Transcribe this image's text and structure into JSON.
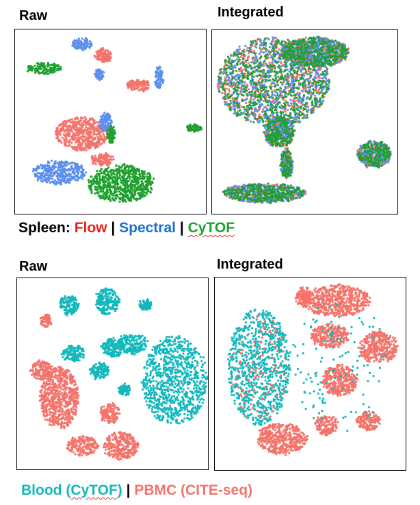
{
  "colors": {
    "flow": "#f4736a",
    "spectral": "#5b8ff0",
    "cytof_spleen": "#1fa12e",
    "blood": "#12b8bc",
    "pbmc": "#f4736a",
    "caption_flow": "#e8201b",
    "caption_spectral": "#1a6fd1",
    "caption_cytof": "#1fa12e",
    "caption_blood": "#12b8bc",
    "caption_pbmc": "#f4736a"
  },
  "titles": {
    "top_raw": "Raw",
    "top_integrated": "Integrated",
    "bottom_raw": "Raw",
    "bottom_integrated": "Integrated"
  },
  "captions": {
    "spleen_prefix": "Spleen:",
    "flow": "Flow",
    "spectral": "Spectral",
    "cytof": "CyTOF",
    "sep": "|",
    "blood_pre": "Blood (",
    "blood_cytof": "CyTOF",
    "blood_post": ")",
    "pbmc": "PBMC (CITE-seq)"
  },
  "chart_data": [
    {
      "type": "scatter",
      "title": "Raw",
      "legend": [
        "Flow",
        "Spectral",
        "CyTOF"
      ],
      "series": [
        {
          "name": "Flow",
          "color": "#f4736a",
          "clusters": [
            {
              "cx": 0.35,
              "cy": 0.56,
              "rx": 0.14,
              "ry": 0.09
            },
            {
              "cx": 0.46,
              "cy": 0.14,
              "rx": 0.04,
              "ry": 0.04
            },
            {
              "cx": 0.64,
              "cy": 0.3,
              "rx": 0.06,
              "ry": 0.03
            },
            {
              "cx": 0.45,
              "cy": 0.7,
              "rx": 0.06,
              "ry": 0.03
            }
          ]
        },
        {
          "name": "Spectral",
          "color": "#5b8ff0",
          "clusters": [
            {
              "cx": 0.23,
              "cy": 0.77,
              "rx": 0.14,
              "ry": 0.06
            },
            {
              "cx": 0.35,
              "cy": 0.08,
              "rx": 0.05,
              "ry": 0.03
            },
            {
              "cx": 0.44,
              "cy": 0.24,
              "rx": 0.02,
              "ry": 0.03
            },
            {
              "cx": 0.75,
              "cy": 0.26,
              "rx": 0.02,
              "ry": 0.06
            },
            {
              "cx": 0.47,
              "cy": 0.5,
              "rx": 0.03,
              "ry": 0.05
            }
          ]
        },
        {
          "name": "CyTOF",
          "color": "#1fa12e",
          "clusters": [
            {
              "cx": 0.55,
              "cy": 0.83,
              "rx": 0.17,
              "ry": 0.1
            },
            {
              "cx": 0.15,
              "cy": 0.21,
              "rx": 0.09,
              "ry": 0.03
            },
            {
              "cx": 0.93,
              "cy": 0.53,
              "rx": 0.04,
              "ry": 0.02
            },
            {
              "cx": 0.5,
              "cy": 0.57,
              "rx": 0.02,
              "ry": 0.05
            }
          ]
        }
      ]
    },
    {
      "type": "scatter",
      "title": "Integrated",
      "legend": [
        "Flow",
        "Spectral",
        "CyTOF"
      ],
      "series": [
        {
          "name": "Flow",
          "color": "#f4736a",
          "mixed": true
        },
        {
          "name": "Spectral",
          "color": "#5b8ff0",
          "mixed": true
        },
        {
          "name": "CyTOF",
          "color": "#1fa12e",
          "mixed": true
        }
      ]
    },
    {
      "type": "scatter",
      "title": "Raw",
      "legend": [
        "Blood (CyTOF)",
        "PBMC (CITE-seq)"
      ],
      "series": [
        {
          "name": "Blood (CyTOF)",
          "color": "#12b8bc",
          "clusters": [
            {
              "cx": 0.82,
              "cy": 0.53,
              "rx": 0.17,
              "ry": 0.23
            },
            {
              "cx": 0.47,
              "cy": 0.12,
              "rx": 0.06,
              "ry": 0.07
            },
            {
              "cx": 0.27,
              "cy": 0.14,
              "rx": 0.05,
              "ry": 0.05
            },
            {
              "cx": 0.6,
              "cy": 0.34,
              "rx": 0.08,
              "ry": 0.05
            },
            {
              "cx": 0.5,
              "cy": 0.36,
              "rx": 0.06,
              "ry": 0.05
            },
            {
              "cx": 0.29,
              "cy": 0.39,
              "rx": 0.06,
              "ry": 0.04
            },
            {
              "cx": 0.43,
              "cy": 0.48,
              "rx": 0.05,
              "ry": 0.04
            },
            {
              "cx": 0.56,
              "cy": 0.58,
              "rx": 0.03,
              "ry": 0.03
            },
            {
              "cx": 0.67,
              "cy": 0.14,
              "rx": 0.03,
              "ry": 0.03
            }
          ]
        },
        {
          "name": "PBMC (CITE-seq)",
          "color": "#f4736a",
          "clusters": [
            {
              "cx": 0.13,
              "cy": 0.48,
              "rx": 0.06,
              "ry": 0.05
            },
            {
              "cx": 0.22,
              "cy": 0.62,
              "rx": 0.1,
              "ry": 0.16
            },
            {
              "cx": 0.34,
              "cy": 0.87,
              "rx": 0.08,
              "ry": 0.05
            },
            {
              "cx": 0.54,
              "cy": 0.87,
              "rx": 0.09,
              "ry": 0.07
            },
            {
              "cx": 0.48,
              "cy": 0.7,
              "rx": 0.05,
              "ry": 0.05
            },
            {
              "cx": 0.15,
              "cy": 0.22,
              "rx": 0.03,
              "ry": 0.03
            }
          ]
        }
      ]
    },
    {
      "type": "scatter",
      "title": "Integrated",
      "legend": [
        "Blood (CyTOF)",
        "PBMC (CITE-seq)"
      ],
      "series": [
        {
          "name": "Blood (CyTOF)",
          "color": "#12b8bc",
          "clusters": [
            {
              "cx": 0.23,
              "cy": 0.46,
              "rx": 0.16,
              "ry": 0.3
            }
          ]
        },
        {
          "name": "PBMC (CITE-seq)",
          "color": "#f4736a",
          "clusters": [
            {
              "cx": 0.63,
              "cy": 0.12,
              "rx": 0.18,
              "ry": 0.08
            },
            {
              "cx": 0.6,
              "cy": 0.3,
              "rx": 0.1,
              "ry": 0.06
            },
            {
              "cx": 0.85,
              "cy": 0.36,
              "rx": 0.1,
              "ry": 0.08
            },
            {
              "cx": 0.65,
              "cy": 0.53,
              "rx": 0.09,
              "ry": 0.08
            },
            {
              "cx": 0.35,
              "cy": 0.83,
              "rx": 0.13,
              "ry": 0.08
            },
            {
              "cx": 0.58,
              "cy": 0.76,
              "rx": 0.06,
              "ry": 0.05
            },
            {
              "cx": 0.8,
              "cy": 0.74,
              "rx": 0.06,
              "ry": 0.05
            },
            {
              "cx": 0.46,
              "cy": 0.1,
              "rx": 0.04,
              "ry": 0.05
            }
          ]
        }
      ]
    }
  ]
}
